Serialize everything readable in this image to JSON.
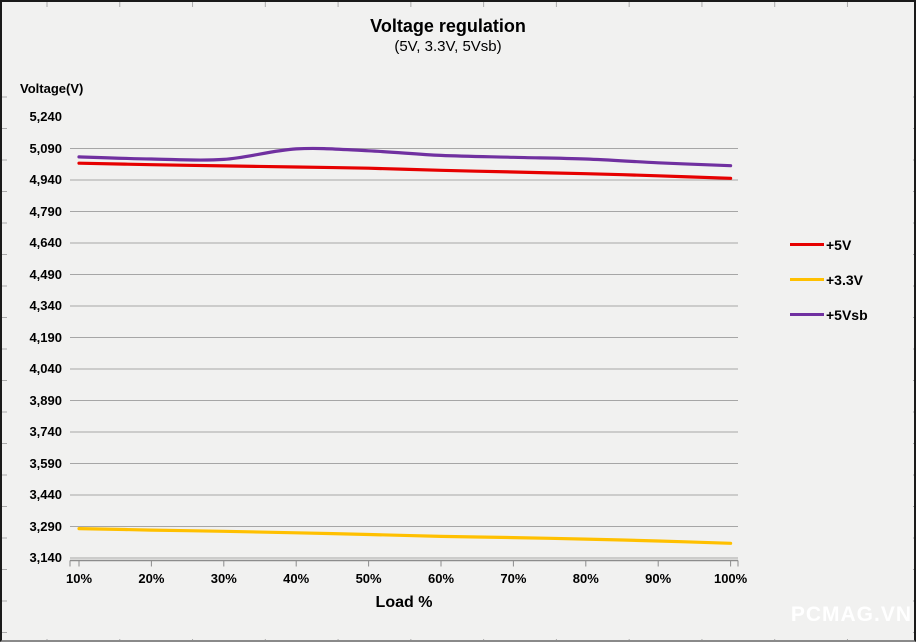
{
  "watermark": "PCMAG.VN",
  "colors": {
    "background": "#f1f1f0",
    "border": "#1a1a1a",
    "gridline": "#a6a6a6",
    "axis": "#8c8c8c",
    "edge_tick": "#ababab",
    "text": "#000000",
    "watermark": "#ffffff"
  },
  "chart_data": {
    "type": "line",
    "title": "Voltage regulation",
    "subtitle": "(5V, 3.3V, 5Vsb)",
    "xlabel": "Load %",
    "ylabel": "Voltage(V)",
    "x_tick_labels": [
      "10%",
      "20%",
      "30%",
      "40%",
      "50%",
      "60%",
      "70%",
      "80%",
      "90%",
      "100%"
    ],
    "x_values": [
      10,
      20,
      30,
      40,
      50,
      60,
      70,
      80,
      90,
      100
    ],
    "y_ticks": [
      5240,
      5090,
      4940,
      4790,
      4640,
      4490,
      4340,
      4190,
      4040,
      3890,
      3740,
      3590,
      3440,
      3290,
      3140
    ],
    "ylim": [
      3140,
      5240
    ],
    "grid": true,
    "legend_position": "right",
    "smoothed_lines": true,
    "series": [
      {
        "name": "+5V",
        "color": "#e60000",
        "values": [
          5020,
          5013,
          5007,
          5002,
          4996,
          4986,
          4978,
          4970,
          4960,
          4948
        ]
      },
      {
        "name": "+3.3V",
        "color": "#ffc000",
        "values": [
          3280,
          3273,
          3267,
          3260,
          3252,
          3243,
          3237,
          3230,
          3221,
          3210
        ]
      },
      {
        "name": "+5Vsb",
        "color": "#7030a0",
        "values": [
          5050,
          5040,
          5038,
          5088,
          5079,
          5057,
          5048,
          5040,
          5022,
          5008
        ]
      }
    ]
  }
}
